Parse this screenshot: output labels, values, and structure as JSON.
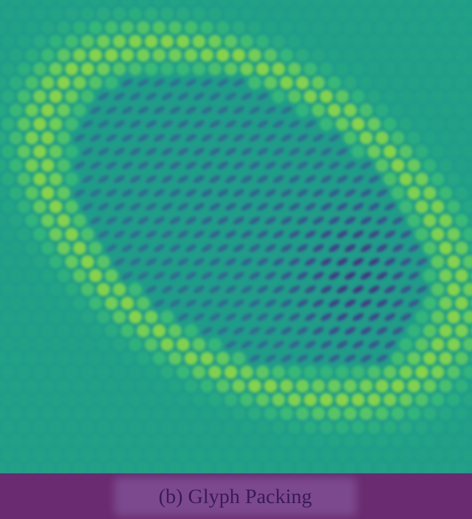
{
  "caption": "(b) Glyph Packing"
}
